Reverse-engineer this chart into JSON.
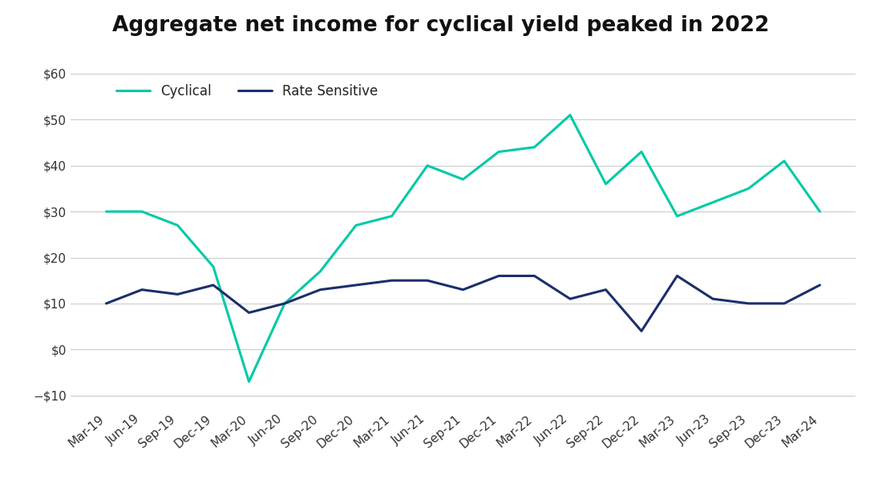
{
  "title": "Aggregate net income for cyclical yield peaked in 2022",
  "x_labels": [
    "Mar-19",
    "Jun-19",
    "Sep-19",
    "Dec-19",
    "Mar-20",
    "Jun-20",
    "Sep-20",
    "Dec-20",
    "Mar-21",
    "Jun-21",
    "Sep-21",
    "Dec-21",
    "Mar-22",
    "Jun-22",
    "Sep-22",
    "Dec-22",
    "Mar-23",
    "Jun-23",
    "Sep-23",
    "Dec-23",
    "Mar-24"
  ],
  "cyclical": [
    30,
    30,
    27,
    18,
    -7,
    10,
    17,
    27,
    29,
    40,
    37,
    43,
    44,
    51,
    36,
    43,
    29,
    32,
    35,
    41,
    30
  ],
  "rate_sensitive": [
    10,
    13,
    12,
    14,
    8,
    10,
    13,
    14,
    15,
    15,
    13,
    16,
    16,
    11,
    13,
    4,
    16,
    11,
    10,
    10,
    14
  ],
  "cyclical_color": "#00C9A7",
  "rate_sensitive_color": "#1B2F6B",
  "ylim": [
    -13,
    63
  ],
  "yticks": [
    -10,
    0,
    10,
    20,
    30,
    40,
    50,
    60
  ],
  "background_color": "#ffffff",
  "grid_color": "#cccccc",
  "title_fontsize": 19,
  "legend_fontsize": 12,
  "tick_fontsize": 11,
  "line_width": 2.2
}
